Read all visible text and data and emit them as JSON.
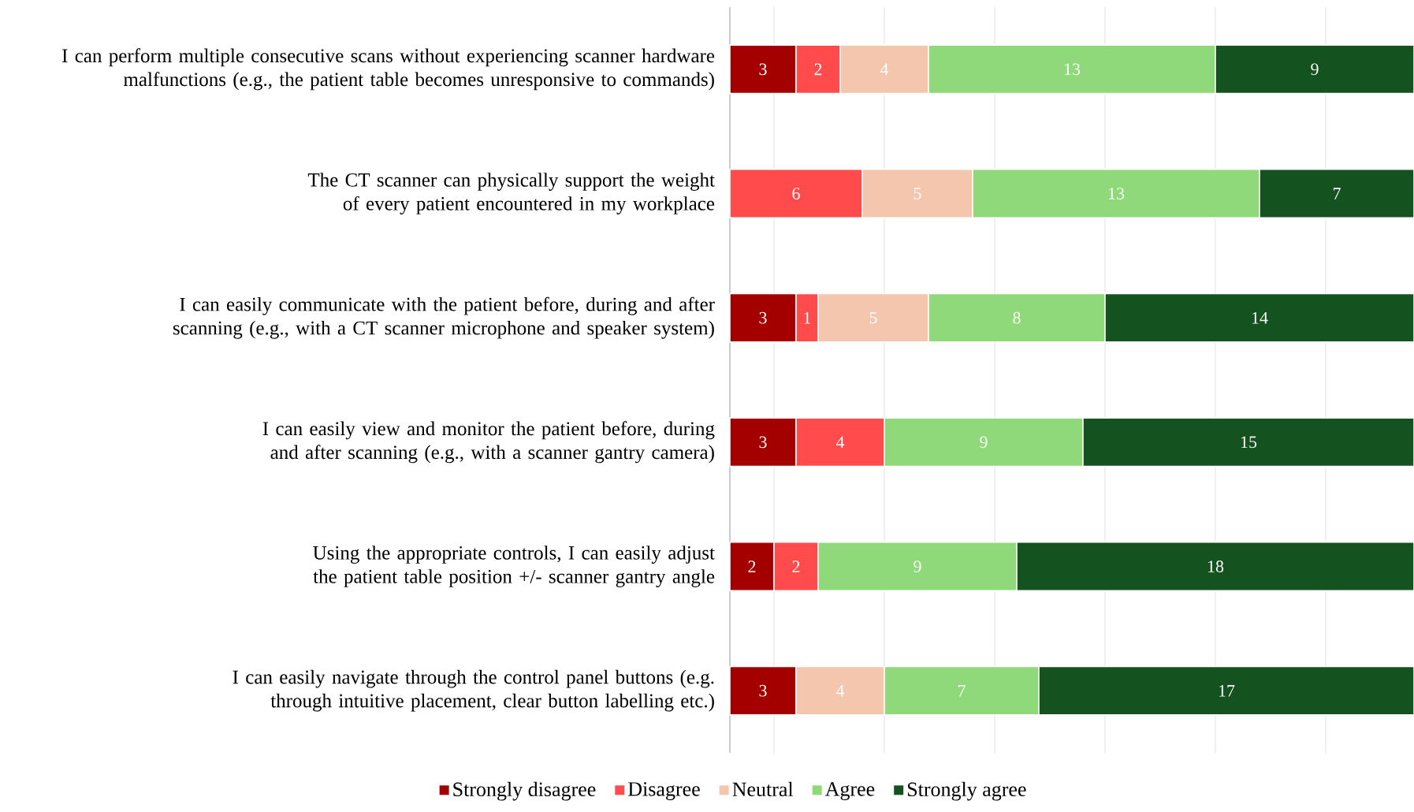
{
  "chart_data": {
    "type": "bar",
    "orientation": "horizontal",
    "stacked": true,
    "data_labels": true,
    "legend": "bottom",
    "grid": "x",
    "tick_labels": "y",
    "xlim": [
      0,
      31
    ],
    "xticks": [
      {
        "value": 2,
        "label": null
      },
      {
        "value": 7,
        "label": null
      },
      {
        "value": 12,
        "label": null
      },
      {
        "value": 17,
        "label": null
      },
      {
        "value": 22,
        "label": null
      },
      {
        "value": 27,
        "label": null
      }
    ],
    "categories": [
      "I can perform multiple consecutive scans without experiencing scanner hardware malfunctions (e.g., the patient table becomes unresponsive to commands)",
      "The CT scanner can physically support the weight of every patient encountered in my workplace",
      "I can easily communicate with the patient before, during and after scanning (e.g., with a CT scanner microphone and speaker system)",
      "I can easily view and monitor the patient before, during and after scanning (e.g., with a scanner gantry camera)",
      "Using the appropriate controls, I can easily adjust the patient table position +/- scanner gantry angle",
      "I can easily navigate through the control panel buttons (e.g.  through intuitive placement, clear button labelling etc.)"
    ],
    "series": [
      {
        "name": "Strongly disagree",
        "color": "#a50000",
        "values": [
          3,
          null,
          3,
          3,
          2,
          3
        ]
      },
      {
        "name": "Disagree",
        "color": "#ff4b4b",
        "values": [
          2,
          6,
          1,
          4,
          2,
          null
        ]
      },
      {
        "name": "Neutral",
        "color": "#f5c6ae",
        "values": [
          4,
          5,
          5,
          null,
          null,
          4
        ]
      },
      {
        "name": "Agree",
        "color": "#8fd97a",
        "values": [
          13,
          13,
          8,
          9,
          9,
          7
        ]
      },
      {
        "name": "Strongly agree",
        "color": "#145220",
        "values": [
          9,
          7,
          14,
          15,
          18,
          17
        ]
      }
    ]
  }
}
